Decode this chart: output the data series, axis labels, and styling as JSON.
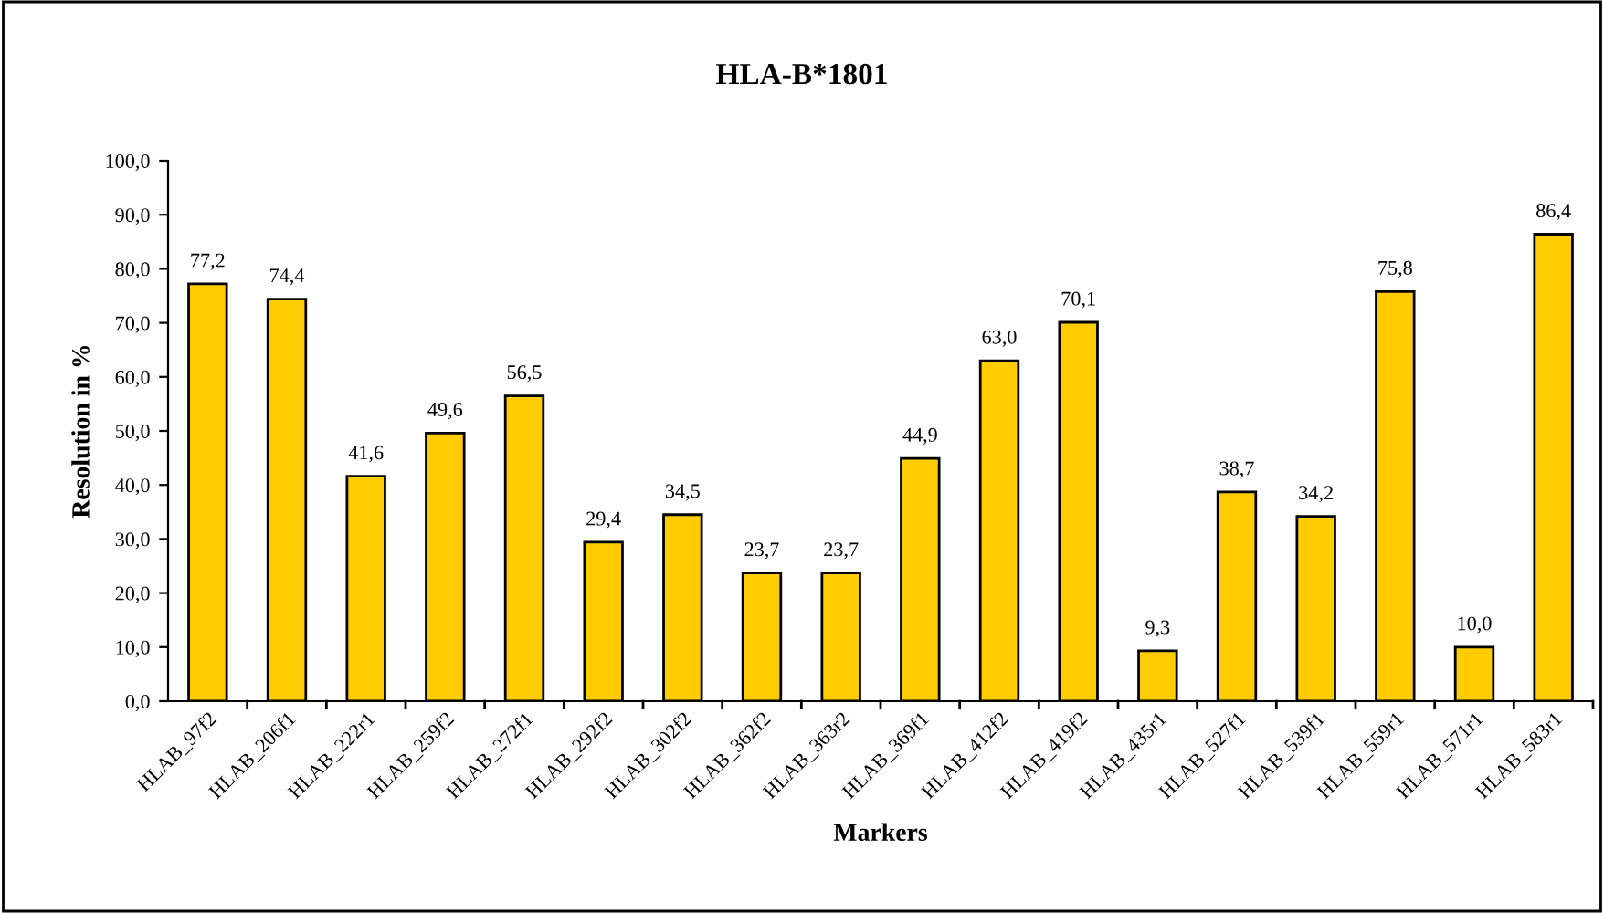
{
  "chart_data": {
    "type": "bar",
    "title": "HLA-B*1801",
    "xlabel": "Markers",
    "ylabel": "Resolution in %",
    "categories": [
      "HLAB_97f2",
      "HLAB_206f1",
      "HLAB_222r1",
      "HLAB_259f2",
      "HLAB_272f1",
      "HLAB_292f2",
      "HLAB_302f2",
      "HLAB_362f2",
      "HLAB_363r2",
      "HLAB_369f1",
      "HLAB_412f2",
      "HLAB_419f2",
      "HLAB_435r1",
      "HLAB_527f1",
      "HLAB_539f1",
      "HLAB_559r1",
      "HLAB_571r1",
      "HLAB_583r1"
    ],
    "values": [
      77.2,
      74.4,
      41.6,
      49.6,
      56.5,
      29.4,
      34.5,
      23.7,
      23.7,
      44.9,
      63.0,
      70.1,
      9.3,
      38.7,
      34.2,
      75.8,
      10.0,
      86.4
    ],
    "value_labels": [
      "77,2",
      "74,4",
      "41,6",
      "49,6",
      "56,5",
      "29,4",
      "34,5",
      "23,7",
      "23,7",
      "44,9",
      "63,0",
      "70,1",
      "9,3",
      "38,7",
      "34,2",
      "75,8",
      "10,0",
      "86,4"
    ],
    "color": "#ffcc00",
    "ylim": [
      0,
      100
    ],
    "yticks": [
      {
        "value": 0,
        "label": "0,0"
      },
      {
        "value": 10,
        "label": "10,0"
      },
      {
        "value": 20,
        "label": "20,0"
      },
      {
        "value": 30,
        "label": "30,0"
      },
      {
        "value": 40,
        "label": "40,0"
      },
      {
        "value": 50,
        "label": "50,0"
      },
      {
        "value": 60,
        "label": "60,0"
      },
      {
        "value": 70,
        "label": "70,0"
      },
      {
        "value": 80,
        "label": "80,0"
      },
      {
        "value": 90,
        "label": "90,0"
      },
      {
        "value": 100,
        "label": "100,0"
      }
    ],
    "grid": false,
    "legend": false
  }
}
